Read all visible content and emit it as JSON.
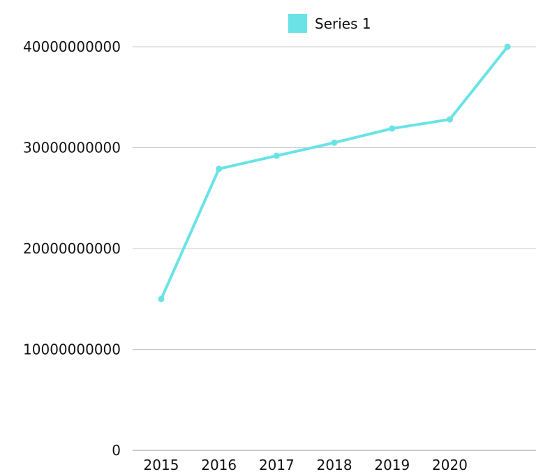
{
  "chart_data": {
    "type": "line",
    "categories": [
      "2015",
      "2016",
      "2017",
      "2018",
      "2019",
      "2020",
      ""
    ],
    "series": [
      {
        "name": "Series 1",
        "values": [
          15000000000,
          27900000000,
          29200000000,
          30500000000,
          31900000000,
          32800000000,
          40000000000
        ]
      }
    ],
    "ylim": [
      0,
      40000000000
    ],
    "yticks": [
      0,
      10000000000,
      20000000000,
      30000000000,
      40000000000
    ],
    "ytick_labels": [
      "0",
      "10000000000",
      "20000000000",
      "30000000000",
      "40000000000"
    ],
    "grid": true,
    "legend": "top-center"
  },
  "colors": {
    "series": "#69E3E6",
    "grid": "#c8c8c8",
    "axis": "#9a9a9a"
  }
}
